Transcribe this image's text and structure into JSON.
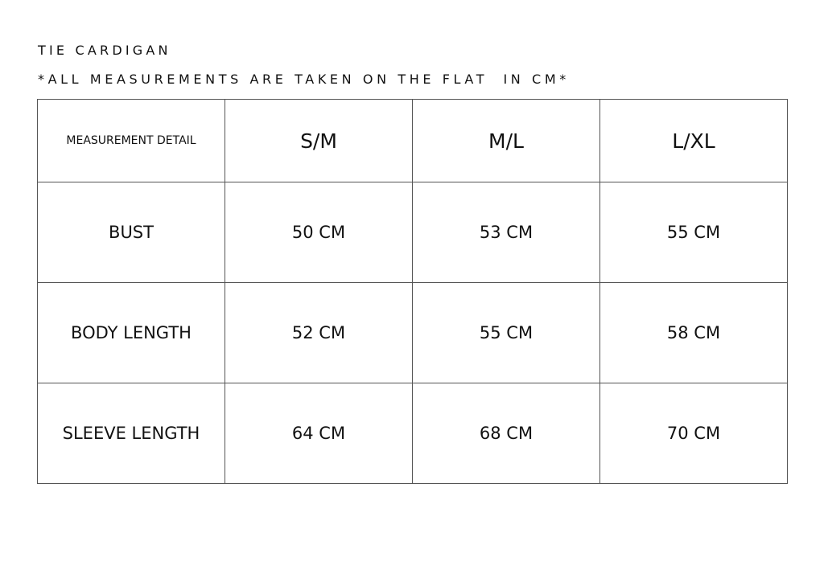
{
  "title": "TIE CARDIGAN",
  "subtitle": "*ALL MEASUREMENTS ARE TAKEN ON THE FLAT  IN CM*",
  "table": {
    "headers": [
      "MEASUREMENT DETAIL",
      "S/M",
      "M/L",
      "L/XL"
    ],
    "rows": [
      [
        "BUST",
        "50 CM",
        "53 CM",
        "55 CM"
      ],
      [
        "BODY LENGTH",
        "52 CM",
        "55 CM",
        "58 CM"
      ],
      [
        "SLEEVE LENGTH",
        "64 CM",
        "68 CM",
        "70 CM"
      ]
    ]
  }
}
